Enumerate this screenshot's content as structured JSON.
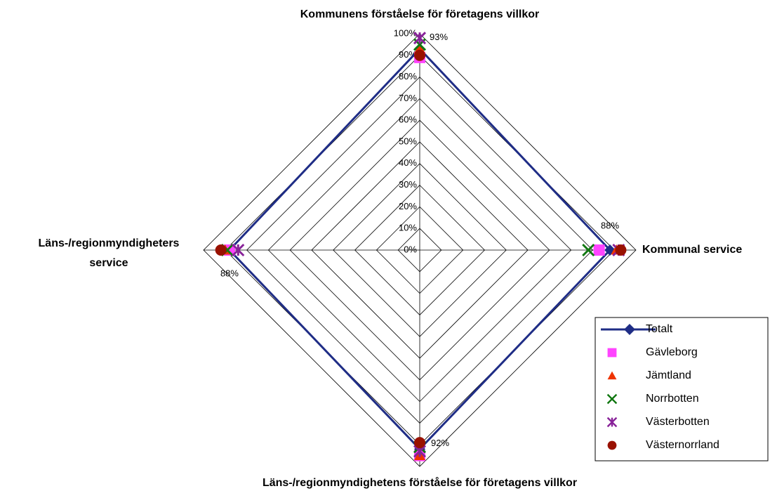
{
  "chart_data": {
    "type": "radar",
    "categories": [
      "Kommunens förståelse för företagens villkor",
      "Kommunal service",
      "Läns-/regionmyndighetens förståelse för företagens villkor",
      "Läns-/regionmyndigheters service"
    ],
    "rlim": [
      0,
      100
    ],
    "rticks": [
      {
        "value": 0,
        "label": "0%"
      },
      {
        "value": 10,
        "label": "10%"
      },
      {
        "value": 20,
        "label": "20%"
      },
      {
        "value": 30,
        "label": "30%"
      },
      {
        "value": 40,
        "label": "40%"
      },
      {
        "value": 50,
        "label": "50%"
      },
      {
        "value": 60,
        "label": "60%"
      },
      {
        "value": 70,
        "label": "70%"
      },
      {
        "value": 80,
        "label": "80%"
      },
      {
        "value": 90,
        "label": "90%"
      },
      {
        "value": 100,
        "label": "100%"
      }
    ],
    "grid": true,
    "legend": "lower right",
    "series": [
      {
        "name": "Totalt",
        "color": "#1f2d86",
        "marker": "diamond",
        "line": true,
        "values": [
          93,
          88,
          92,
          88
        ],
        "value_labels": [
          "93%",
          "88%",
          "92%",
          "88%"
        ]
      },
      {
        "name": "Gävleborg",
        "color": "#ff44ff",
        "marker": "square",
        "line": false,
        "values": [
          89,
          83,
          95,
          88
        ]
      },
      {
        "name": "Jämtland",
        "color": "#ee3300",
        "marker": "triangle",
        "line": false,
        "values": [
          93,
          91,
          95,
          90
        ]
      },
      {
        "name": "Norrbotten",
        "color": "#117711",
        "marker": "x",
        "line": false,
        "values": [
          95,
          78,
          91,
          89
        ]
      },
      {
        "name": "Västerbotten",
        "color": "#882299",
        "marker": "asterisk",
        "line": false,
        "values": [
          98,
          92,
          93,
          84
        ]
      },
      {
        "name": "Västernorrland",
        "color": "#991100",
        "marker": "circle",
        "line": false,
        "values": [
          90,
          93,
          89,
          92
        ]
      }
    ]
  }
}
